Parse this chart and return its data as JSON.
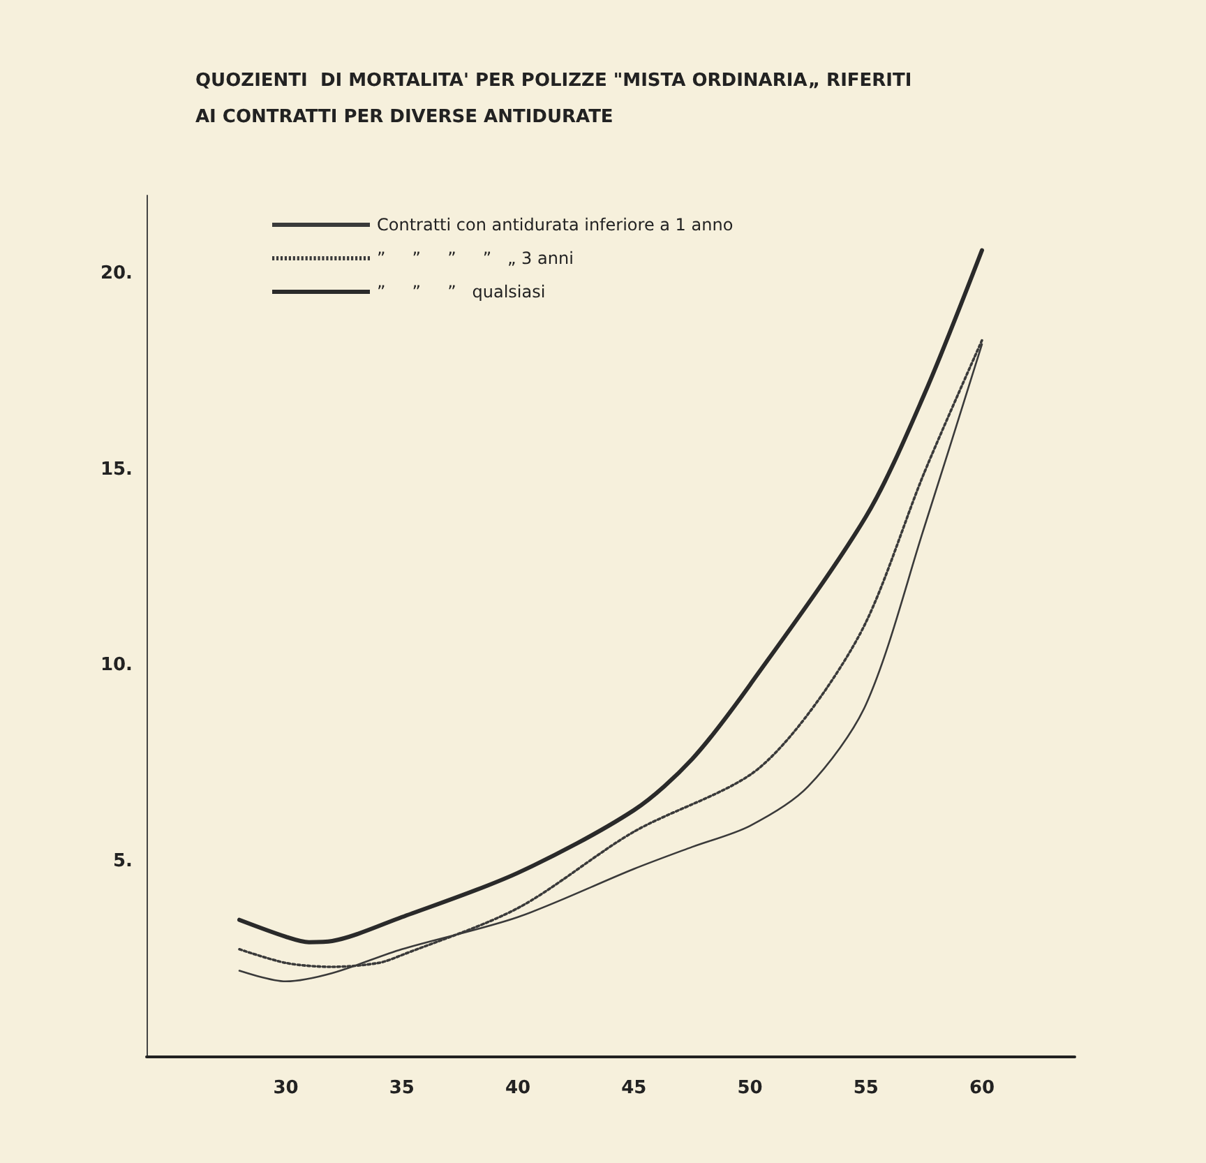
{
  "chart_data": {
    "type": "line",
    "title": "QUOZIENTI  DI MORTALITA' PER POLIZZE \"MISTA ORDINARIA„ RIFERITI\nAI CONTRATTI PER DIVERSE ANTIDURATE",
    "xlim": [
      24,
      64
    ],
    "xticks": [
      30,
      35,
      40,
      45,
      50,
      55,
      60
    ],
    "ylim": [
      0,
      22
    ],
    "yticks": [
      {
        "value": 5,
        "label": "5."
      },
      {
        "value": 10,
        "label": "10."
      },
      {
        "value": 15,
        "label": "15."
      },
      {
        "value": 20,
        "label": "20."
      }
    ],
    "grid": false,
    "legend": "top left",
    "marker": "none",
    "series": [
      {
        "name": "Contratti con antidurata inferiore a 1 anno",
        "color": "#3a3a3a",
        "line_style": "solid",
        "x": [
          28,
          30,
          32,
          35,
          40,
          45,
          47.5,
          50,
          52.5,
          55,
          57.5,
          60
        ],
        "values": [
          2.2,
          1.93,
          2.14,
          2.75,
          3.57,
          4.8,
          5.36,
          5.9,
          6.9,
          9.0,
          13.5,
          18.2
        ]
      },
      {
        "name": "”     ”     ”     ”   „ 3 anni",
        "color": "#3a3a3a",
        "line_style": "dotted",
        "x": [
          28,
          30,
          32,
          34,
          35,
          40,
          45,
          50,
          52.5,
          55,
          57.5,
          60
        ],
        "values": [
          2.75,
          2.4,
          2.3,
          2.4,
          2.6,
          3.8,
          5.75,
          7.2,
          8.75,
          11.1,
          14.9,
          18.3
        ]
      },
      {
        "name": "”     ”     ”   qualsiasi",
        "color": "#2a2a2a",
        "line_style": "solid",
        "x": [
          28,
          30,
          31,
          32,
          35,
          40,
          45,
          47.5,
          50,
          55,
          57.5,
          60
        ],
        "values": [
          3.5,
          3.07,
          2.93,
          2.96,
          3.57,
          4.7,
          6.3,
          7.6,
          9.5,
          13.8,
          16.9,
          20.6
        ]
      }
    ]
  }
}
